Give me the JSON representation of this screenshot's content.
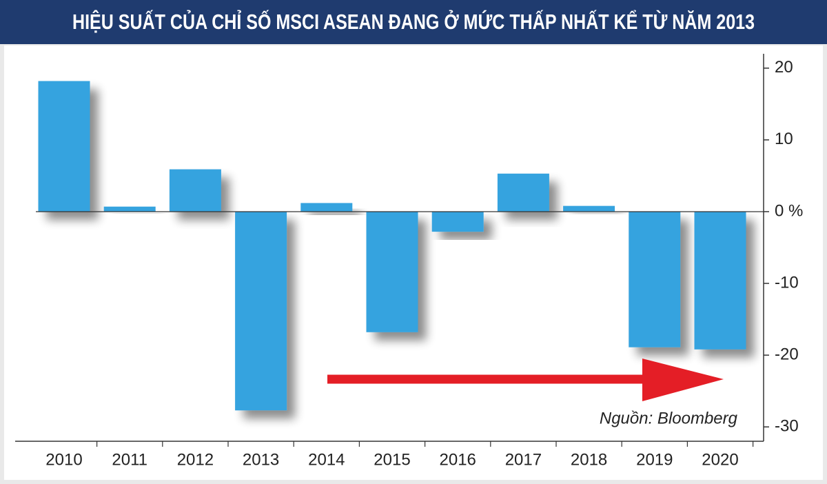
{
  "chart_data": {
    "type": "bar",
    "title": "HIỆU SUẤT CỦA CHỈ SỐ MSCI ASEAN ĐANG Ở MỨC THẤP NHẤT KỂ TỪ NĂM 2013",
    "categories": [
      "2010",
      "2011",
      "2012",
      "2013",
      "2014",
      "2015",
      "2016",
      "2017",
      "2018",
      "2019",
      "2020"
    ],
    "values": [
      18.2,
      0.7,
      5.9,
      -27.7,
      1.2,
      -16.8,
      -2.8,
      5.3,
      0.8,
      -18.9,
      -19.2
    ],
    "color": "#36a3df",
    "ylim": [
      -32,
      22
    ],
    "yticks": [
      20,
      10,
      {
        "value": 0,
        "label": "0 %"
      },
      -10,
      -20,
      -30
    ],
    "annotation": "Nguồn: Bloomberg"
  }
}
